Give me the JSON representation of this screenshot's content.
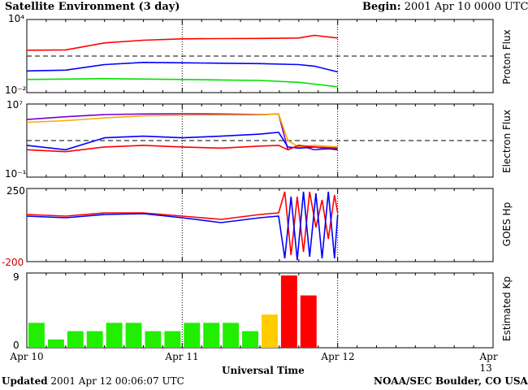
{
  "header": {
    "title": "Satellite Environment (3 day)",
    "begin_label": "Begin:",
    "begin_value": "2001 Apr 10 0000 UTC"
  },
  "footer": {
    "updated_label": "Updated",
    "updated_value": "2001 Apr 12 00:06:07 UTC",
    "credit": "NOAA/SEC Boulder, CO USA"
  },
  "x_axis": {
    "label": "Universal Time",
    "ticks": [
      "Apr 10",
      "Apr 11",
      "Apr 12",
      "Apr 13"
    ]
  },
  "panels": {
    "proton": {
      "title": "Proton Flux",
      "ymax": "10⁴",
      "ymin": "10⁻²"
    },
    "electron": {
      "title": "Electron Flux",
      "ymax": "10⁷",
      "ymin": "10⁻¹"
    },
    "hp": {
      "title": "GOES Hp",
      "ymax": "250",
      "ymin": "-200"
    },
    "kp": {
      "title": "Estimated Kp",
      "ymax": "9",
      "ymin": "0"
    }
  },
  "chart_data": [
    {
      "type": "line",
      "panel": "proton",
      "ylabel": "Proton Flux",
      "yscale": "log",
      "ylim": [
        0.01,
        10000
      ],
      "x": [
        0,
        0.25,
        0.5,
        0.75,
        1.0,
        1.25,
        1.5,
        1.75,
        1.85,
        2.0
      ],
      "series": [
        {
          "color": "#ff0000",
          "values": [
            30,
            32,
            120,
            200,
            260,
            270,
            280,
            300,
            500,
            300
          ]
        },
        {
          "color": "#0000ff",
          "values": [
            0.6,
            0.7,
            2.0,
            3.0,
            2.8,
            2.6,
            2.4,
            2.0,
            1.5,
            0.5
          ]
        },
        {
          "color": "#00e000",
          "values": [
            0.12,
            0.13,
            0.14,
            0.13,
            0.12,
            0.11,
            0.1,
            0.07,
            0.05,
            0.03
          ]
        }
      ],
      "reference_level": 10,
      "xlim": [
        0,
        3
      ]
    },
    {
      "type": "line",
      "panel": "electron",
      "ylabel": "Electron Flux",
      "yscale": "log",
      "ylim": [
        0.1,
        10000000
      ],
      "x": [
        0,
        0.25,
        0.5,
        0.75,
        1.0,
        1.25,
        1.5,
        1.62,
        1.68,
        1.75,
        1.85,
        2.0
      ],
      "series": [
        {
          "color": "#7700cc",
          "values": [
            200000,
            400000,
            700000,
            800000,
            850000,
            800000,
            700000,
            800000,
            100,
            300,
            100,
            150
          ]
        },
        {
          "color": "#ffaa00",
          "values": [
            100000,
            150000,
            300000,
            500000,
            600000,
            650000,
            650000,
            800000,
            1000,
            200,
            300,
            200
          ]
        },
        {
          "color": "#0000ff",
          "values": [
            300,
            100,
            2000,
            3000,
            2000,
            3000,
            5000,
            8000,
            200,
            150,
            200,
            100
          ]
        },
        {
          "color": "#ff0000",
          "values": [
            100,
            60,
            200,
            300,
            200,
            150,
            250,
            300,
            100,
            300,
            200,
            150
          ]
        }
      ],
      "reference_level": 1000,
      "xlim": [
        0,
        3
      ]
    },
    {
      "type": "line",
      "panel": "hp",
      "ylabel": "GOES Hp",
      "ylim": [
        -200,
        250
      ],
      "x": [
        0,
        0.25,
        0.5,
        0.75,
        1.0,
        1.25,
        1.5,
        1.62,
        1.66,
        1.7,
        1.74,
        1.78,
        1.82,
        1.86,
        1.9,
        1.94,
        1.98,
        2.0
      ],
      "series": [
        {
          "color": "#ff0000",
          "values": [
            90,
            80,
            100,
            100,
            80,
            60,
            90,
            100,
            230,
            -160,
            200,
            -140,
            230,
            10,
            180,
            -60,
            210,
            100
          ]
        },
        {
          "color": "#0000ff",
          "values": [
            80,
            70,
            90,
            95,
            70,
            40,
            70,
            80,
            -180,
            200,
            -190,
            230,
            -170,
            220,
            -180,
            230,
            -180,
            90
          ]
        }
      ],
      "xlim": [
        0,
        3
      ]
    },
    {
      "type": "bar",
      "panel": "kp",
      "ylabel": "Estimated Kp",
      "ylim": [
        0,
        9
      ],
      "xlim": [
        0,
        3
      ],
      "bar_width_hours": 3,
      "values": [
        3,
        1,
        2,
        2,
        3,
        3,
        2,
        2,
        3,
        3,
        3,
        2,
        4,
        8.7,
        6.3
      ],
      "colors": [
        "#22ee00",
        "#22ee00",
        "#22ee00",
        "#22ee00",
        "#22ee00",
        "#22ee00",
        "#22ee00",
        "#22ee00",
        "#22ee00",
        "#22ee00",
        "#22ee00",
        "#22ee00",
        "#ffcc00",
        "#ff0000",
        "#ff0000"
      ]
    }
  ]
}
